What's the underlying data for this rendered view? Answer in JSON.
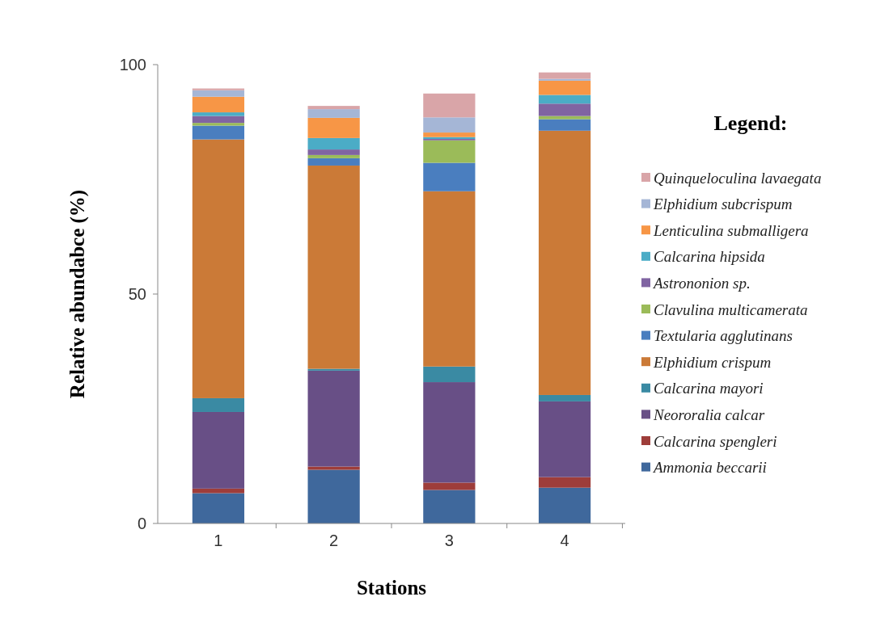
{
  "chart_data": {
    "type": "bar",
    "stacked": true,
    "categories": [
      "1",
      "2",
      "3",
      "4"
    ],
    "xlabel": "Stations",
    "ylabel": "Relative abundabce (%)",
    "legend_title": "Legend:",
    "legend": "right",
    "ylim": [
      0,
      100
    ],
    "yticks": [
      0,
      50,
      100
    ],
    "grid": false,
    "series": [
      {
        "name": "Ammonia beccarii",
        "color": "#3f689c",
        "values": [
          6.6,
          11.7,
          7.3,
          7.8
        ]
      },
      {
        "name": "Calcarina spengleri",
        "color": "#9e3d3a",
        "values": [
          1.0,
          0.7,
          1.6,
          2.3
        ]
      },
      {
        "name": "Neororalia calcar",
        "color": "#684f86",
        "values": [
          16.7,
          20.9,
          21.9,
          16.5
        ]
      },
      {
        "name": "Calcarina mayori",
        "color": "#3a8aa3",
        "values": [
          3.0,
          0.4,
          3.4,
          1.4
        ]
      },
      {
        "name": "Elphidium crispum",
        "color": "#cb7a37",
        "values": [
          56.4,
          44.3,
          38.2,
          57.6
        ]
      },
      {
        "name": "Textularia agglutinans",
        "color": "#4a7ebf",
        "values": [
          3.0,
          1.6,
          6.2,
          2.5
        ]
      },
      {
        "name": "Clavulina multicamerata",
        "color": "#9bbb59",
        "values": [
          0.6,
          0.7,
          4.9,
          0.7
        ]
      },
      {
        "name": "Astrononion sp.",
        "color": "#8064a2",
        "values": [
          1.5,
          1.2,
          0.3,
          2.7
        ]
      },
      {
        "name": "Calcarina hipsida",
        "color": "#4bacc6",
        "values": [
          0.8,
          2.5,
          0.4,
          1.9
        ]
      },
      {
        "name": "Lenticulina submalligera",
        "color": "#f79646",
        "values": [
          3.4,
          4.4,
          1.0,
          3.1
        ]
      },
      {
        "name": "Elphidium subcrispum",
        "color": "#a5b6d6",
        "values": [
          1.4,
          1.9,
          3.3,
          0.4
        ]
      },
      {
        "name": "Quinqueloculina lavaegata",
        "color": "#d9a5a8",
        "values": [
          0.4,
          0.7,
          5.2,
          1.4
        ]
      }
    ]
  }
}
